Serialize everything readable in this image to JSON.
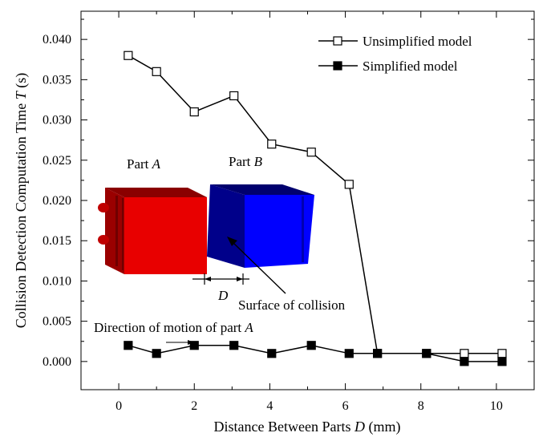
{
  "chart_data": {
    "type": "line",
    "xlabel_prefix": "Distance Between Parts ",
    "xlabel_var": "D",
    "xlabel_suffix": " (mm)",
    "ylabel_prefix": "Collision Detection Computation Time ",
    "ylabel_var": "T",
    "ylabel_suffix": " (s)",
    "xlim": [
      -1,
      11
    ],
    "ylim": [
      -0.0035,
      0.0435
    ],
    "x_ticks": [
      0,
      2,
      4,
      6,
      8,
      10
    ],
    "x_tick_labels": [
      "0",
      "2",
      "4",
      "6",
      "8",
      "10"
    ],
    "y_ticks": [
      0,
      0.005,
      0.01,
      0.015,
      0.02,
      0.025,
      0.03,
      0.035,
      0.04
    ],
    "y_tick_labels": [
      "0.000",
      "0.005",
      "0.010",
      "0.015",
      "0.020",
      "0.025",
      "0.030",
      "0.035",
      "0.040"
    ],
    "legend_position": "top-right",
    "grid": false,
    "series": [
      {
        "name": "Unsimplified model",
        "marker": "open-square",
        "x": [
          0.25,
          1.0,
          2.0,
          3.05,
          4.05,
          5.1,
          6.1,
          6.85,
          8.15,
          9.15,
          10.15
        ],
        "y": [
          0.038,
          0.036,
          0.031,
          0.033,
          0.027,
          0.026,
          0.022,
          0.001,
          0.001,
          0.001,
          0.001
        ]
      },
      {
        "name": "Simplified model",
        "marker": "filled-square",
        "x": [
          0.25,
          1.0,
          2.0,
          3.05,
          4.05,
          5.1,
          6.1,
          6.85,
          8.15,
          9.15,
          10.15
        ],
        "y": [
          0.002,
          0.001,
          0.002,
          0.002,
          0.001,
          0.002,
          0.001,
          0.001,
          0.001,
          0.0,
          0.0
        ]
      }
    ],
    "annotations": {
      "part_a_prefix": "Part ",
      "part_a_var": "A",
      "part_b_prefix": "Part ",
      "part_b_var": "B",
      "distance_var": "D",
      "surface_label": "Surface of collision",
      "direction_prefix": "Direction of motion of part ",
      "direction_var": "A"
    },
    "colors": {
      "part_a_front": "#e80000",
      "part_a_side": "#9a0000",
      "part_b_front": "#0000ff",
      "part_b_side": "#00008a"
    }
  }
}
